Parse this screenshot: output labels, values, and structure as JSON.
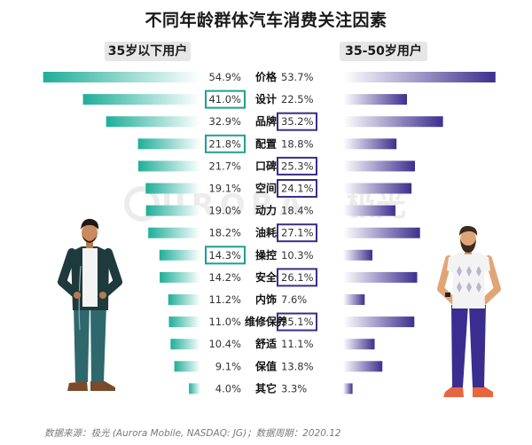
{
  "title": "不同年龄群体汽车消费关注因素",
  "source": "数据来源：极光 (Aurora Mobile, NASDAQ: JG)；数据周期：2020.12",
  "watermark": {
    "latin": "URORA",
    "cjk": "极光"
  },
  "colors": {
    "left_bar": "#1fae98",
    "right_bar": "#3d2f8e",
    "left_highlight": "#1fa08c",
    "right_highlight": "#3a2d86"
  },
  "chart_data": {
    "type": "bar",
    "title": "不同年龄群体汽车消费关注因素",
    "orientation": "horizontal-butterfly",
    "unit": "%",
    "categories": [
      "价格",
      "设计",
      "品牌",
      "配置",
      "口碑",
      "空间",
      "动力",
      "油耗",
      "操控",
      "安全",
      "内饰",
      "维修保养",
      "舒适",
      "保值",
      "其它"
    ],
    "series": [
      {
        "name": "35岁以下用户",
        "values": [
          54.9,
          41.0,
          32.9,
          21.8,
          21.7,
          19.1,
          19.0,
          18.2,
          14.3,
          14.2,
          11.2,
          11.0,
          10.4,
          9.1,
          4.0
        ],
        "labels": [
          "54.9%",
          "41.0%",
          "32.9%",
          "21.8%",
          "21.7%",
          "19.1%",
          "19.0%",
          "18.2%",
          "14.3%",
          "14.2%",
          "11.2%",
          "11.0%",
          "10.4%",
          "9.1%",
          "4.0%"
        ],
        "highlighted_indices": [
          1,
          3,
          8
        ]
      },
      {
        "name": "35-50岁用户",
        "values": [
          53.7,
          22.5,
          35.2,
          18.8,
          25.3,
          24.1,
          18.4,
          27.1,
          10.3,
          26.1,
          7.6,
          25.1,
          11.1,
          13.8,
          3.3
        ],
        "labels": [
          "53.7%",
          "22.5%",
          "35.2%",
          "18.8%",
          "25.3%",
          "24.1%",
          "18.4%",
          "27.1%",
          "10.3%",
          "26.1%",
          "7.6%",
          "25.1%",
          "11.1%",
          "13.8%",
          "3.3%"
        ],
        "highlighted_indices": [
          2,
          4,
          5,
          7,
          9,
          11
        ]
      }
    ]
  }
}
